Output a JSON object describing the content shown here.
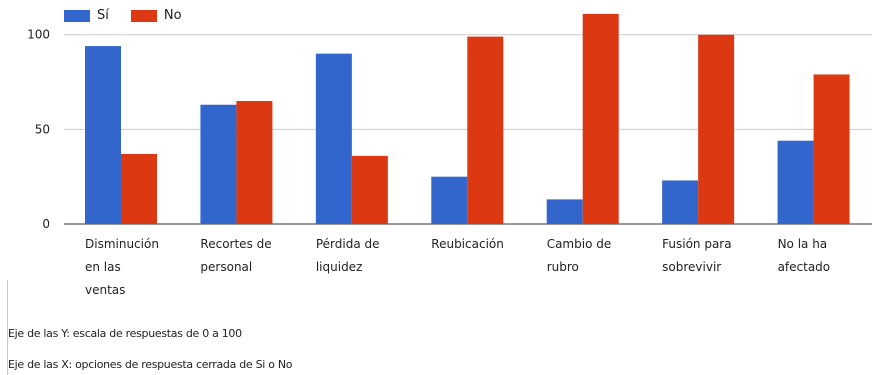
{
  "chart_data": {
    "type": "bar",
    "categories": [
      [
        "Disminución",
        "en las",
        "ventas"
      ],
      [
        "Recortes de",
        "personal"
      ],
      [
        "Pérdida  de",
        "liquidez"
      ],
      [
        "Reubicación"
      ],
      [
        "Cambio de",
        "rubro"
      ],
      [
        "Fusión para",
        "sobrevivir"
      ],
      [
        "No la ha",
        "afectado"
      ]
    ],
    "series": [
      {
        "name": "Sí",
        "color": "#3366cc",
        "values": [
          94,
          63,
          90,
          25,
          13,
          23,
          44
        ]
      },
      {
        "name": "No",
        "color": "#dc3912",
        "values": [
          37,
          65,
          36,
          99,
          111,
          100,
          79
        ]
      }
    ],
    "yticks": [
      0,
      50,
      100
    ],
    "ylim": [
      0,
      112
    ],
    "grid": true,
    "legend_position": "top-left"
  },
  "notes": {
    "y_note": "Eje de las Y: escala de respuestas de 0 a 100",
    "x_note": "Eje de las X: opciones de respuesta cerrada de Si o No"
  }
}
